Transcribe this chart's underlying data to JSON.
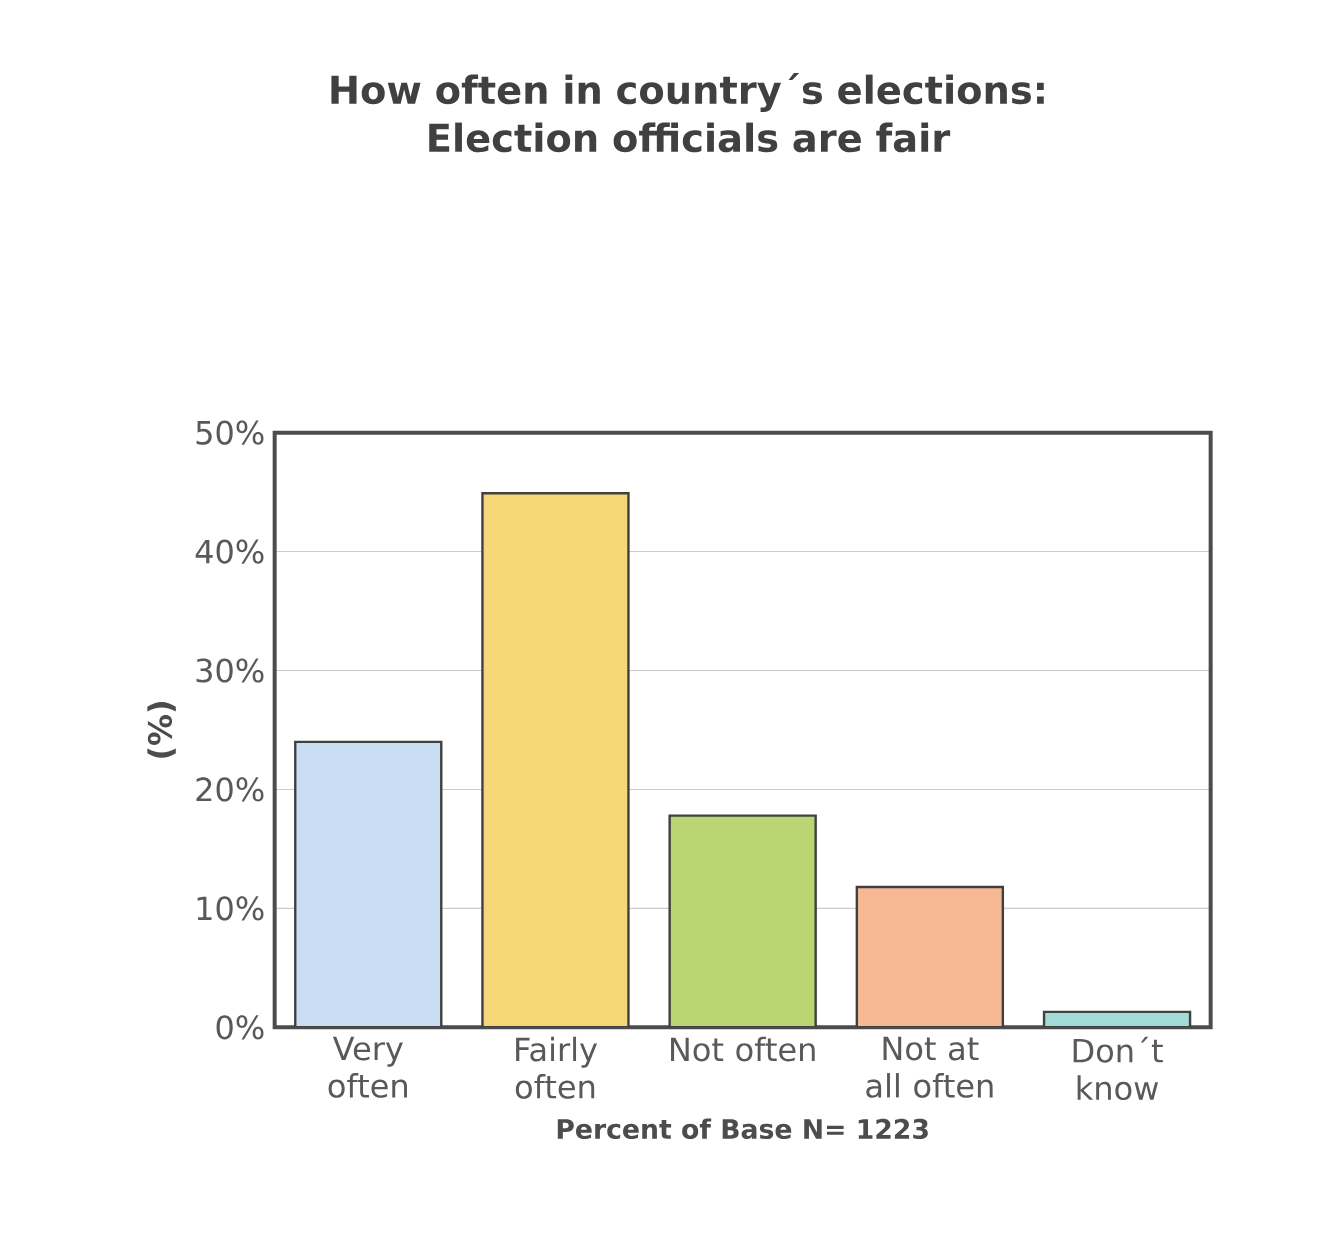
{
  "chart_data": {
    "type": "bar",
    "title": "How often in country´s elections: Election officials are fair",
    "ylabel": "(%)",
    "xlabel": "Percent of Base N= 1223",
    "categories": [
      "Very often",
      "Fairly often",
      "Not often",
      "Not at all often",
      "Don´t know"
    ],
    "values": [
      24.0,
      44.9,
      17.8,
      11.8,
      1.3
    ],
    "colors": [
      "#c9def3",
      "#f6d778",
      "#b9d672",
      "#f6b994",
      "#a3dbd8"
    ],
    "ylim": [
      0,
      50
    ],
    "yticks": [
      {
        "value": 0,
        "label": "0%"
      },
      {
        "value": 10,
        "label": "10%"
      },
      {
        "value": 20,
        "label": "20%"
      },
      {
        "value": 30,
        "label": "30%"
      },
      {
        "value": 40,
        "label": "40%"
      },
      {
        "value": 50,
        "label": "50%"
      }
    ],
    "grid": "y"
  }
}
